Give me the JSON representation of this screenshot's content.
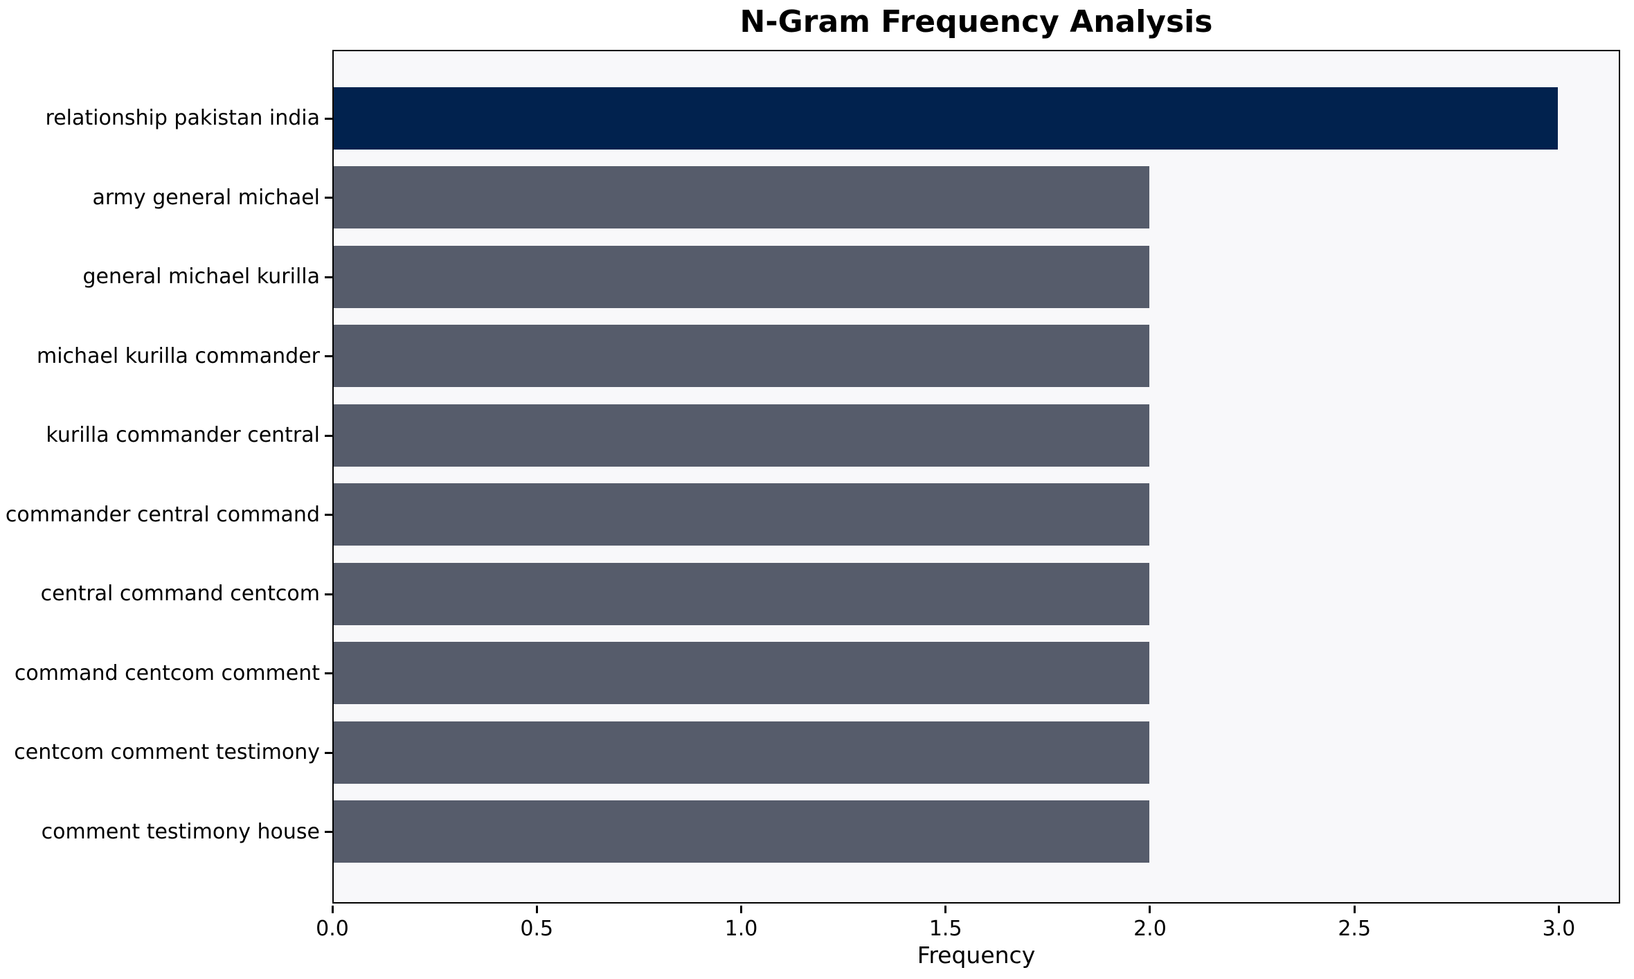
{
  "chart_data": {
    "type": "bar",
    "orientation": "horizontal",
    "title": "N-Gram Frequency Analysis",
    "xlabel": "Frequency",
    "ylabel": "",
    "categories": [
      "relationship pakistan india",
      "army general michael",
      "general michael kurilla",
      "michael kurilla commander",
      "kurilla commander central",
      "commander central command",
      "central command centcom",
      "command centcom comment",
      "centcom comment testimony",
      "comment testimony house"
    ],
    "values": [
      3,
      2,
      2,
      2,
      2,
      2,
      2,
      2,
      2,
      2
    ],
    "x_tick_values": [
      0.0,
      0.5,
      1.0,
      1.5,
      2.0,
      2.5,
      3.0
    ],
    "x_tick_labels": [
      "0.0",
      "0.5",
      "1.0",
      "1.5",
      "2.0",
      "2.5",
      "3.0"
    ],
    "xlim": [
      0,
      3.15
    ],
    "grid": false,
    "legend": null,
    "colors": {
      "bar_highlight": "#01224E",
      "bar_default": "#565C6B",
      "plot_background": "#F8F8FA",
      "figure_background": "#FFFFFF",
      "axis": "#000000",
      "text": "#000000"
    }
  }
}
